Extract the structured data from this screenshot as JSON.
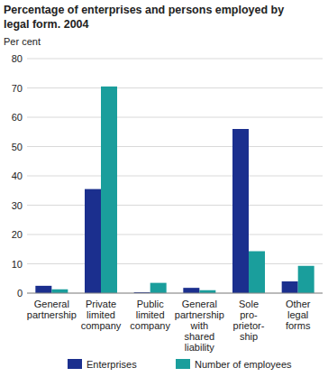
{
  "chart_data": {
    "type": "bar",
    "title": "Percentage of enterprises and persons employed by\nlegal form. 2004",
    "y_label": "Per cent",
    "categories": [
      "General\npartnership",
      "Private\nlimited\ncompany",
      "Public\nlimited\ncompany",
      "General\npartnership\nwith\nshared\nliability",
      "Sole\npro-\nprietor-\nship",
      "Other\nlegal\nforms"
    ],
    "series": [
      {
        "name": "Enterprises",
        "color": "#1b2f8e",
        "values": [
          2.5,
          35.5,
          0.3,
          1.8,
          56,
          4
        ]
      },
      {
        "name": "Number of employees",
        "color": "#1a9e9c",
        "values": [
          1.3,
          70.5,
          3.5,
          1.0,
          14.3,
          9.3
        ]
      }
    ],
    "ylim": [
      0,
      80
    ],
    "yticks": [
      0,
      10,
      20,
      30,
      40,
      50,
      60,
      70,
      80
    ],
    "grid": true,
    "legend": "bottom"
  }
}
